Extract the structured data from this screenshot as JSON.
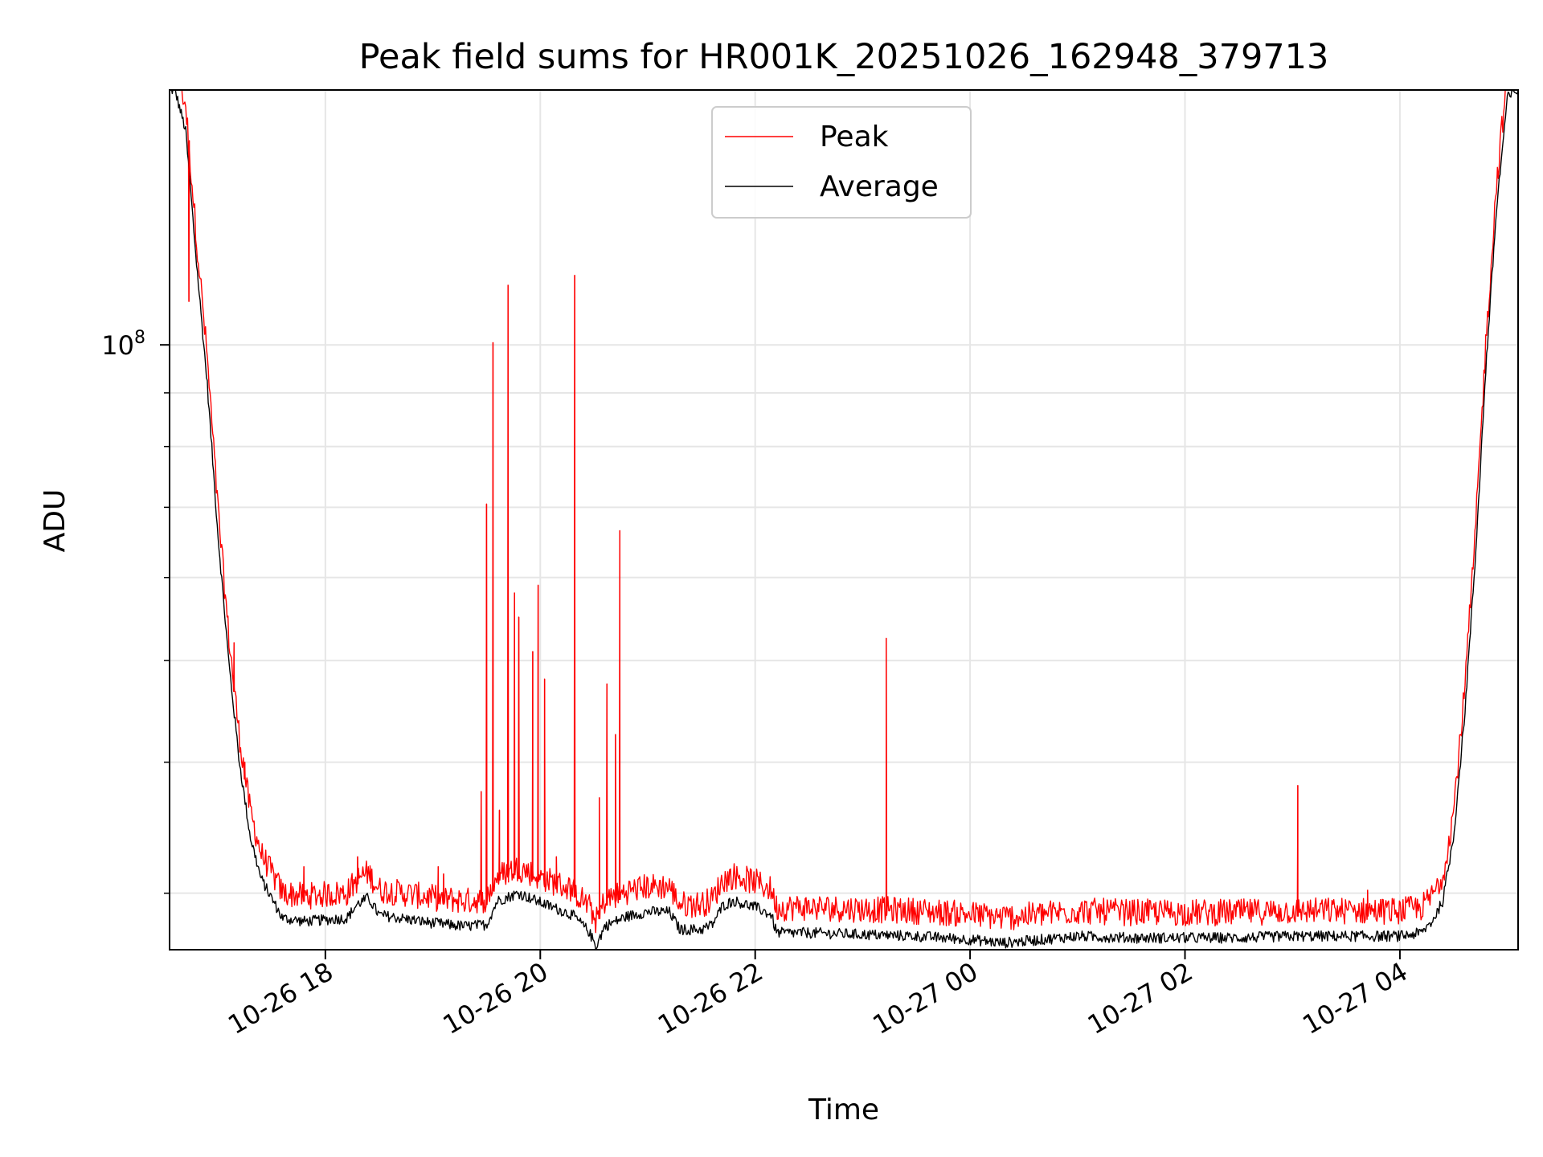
{
  "chart_data": {
    "type": "line",
    "title": "Peak field sums for HR001K_20251026_162948_379713",
    "xlabel": "Time",
    "ylabel": "ADU",
    "y_scale": "log",
    "x_unit": "hours since 2025-10-26 00:00",
    "xlim": [
      16.55,
      29.1
    ],
    "ylim": [
      26500000,
      175000000
    ],
    "grid": true,
    "x_ticks": [
      {
        "value": 18,
        "label": "10-26 18"
      },
      {
        "value": 20,
        "label": "10-26 20"
      },
      {
        "value": 22,
        "label": "10-26 22"
      },
      {
        "value": 24,
        "label": "10-27 00"
      },
      {
        "value": 26,
        "label": "10-27 02"
      },
      {
        "value": 28,
        "label": "10-27 04"
      }
    ],
    "y_major_tick": {
      "value": 100000000,
      "label_base": "10",
      "label_exp": "8"
    },
    "y_minor_ticks": [
      30000000,
      40000000,
      50000000,
      60000000,
      70000000,
      80000000,
      90000000,
      200000000
    ],
    "legend": {
      "placement": "upper-center",
      "entries": [
        {
          "label": "Peak",
          "color": "#ff0000"
        },
        {
          "label": "Average",
          "color": "#000000"
        }
      ]
    },
    "series": [
      {
        "name": "Average",
        "color": "#000000",
        "points": [
          [
            16.6,
            175000000
          ],
          [
            16.7,
            160000000
          ],
          [
            16.8,
            120000000
          ],
          [
            16.9,
            92000000
          ],
          [
            17.0,
            66000000
          ],
          [
            17.1,
            50000000
          ],
          [
            17.2,
            40000000
          ],
          [
            17.3,
            34000000
          ],
          [
            17.4,
            31000000
          ],
          [
            17.6,
            28400000
          ],
          [
            17.8,
            28200000
          ],
          [
            18.0,
            28300000
          ],
          [
            18.2,
            28400000
          ],
          [
            18.3,
            29300000
          ],
          [
            18.4,
            29700000
          ],
          [
            18.5,
            28600000
          ],
          [
            19.0,
            28100000
          ],
          [
            19.3,
            27900000
          ],
          [
            19.5,
            28000000
          ],
          [
            19.6,
            29500000
          ],
          [
            19.8,
            30000000
          ],
          [
            20.0,
            29400000
          ],
          [
            20.3,
            28600000
          ],
          [
            20.45,
            27600000
          ],
          [
            20.52,
            26700000
          ],
          [
            20.6,
            27900000
          ],
          [
            20.8,
            28500000
          ],
          [
            21.0,
            28800000
          ],
          [
            21.2,
            28800000
          ],
          [
            21.3,
            27700000
          ],
          [
            21.5,
            27700000
          ],
          [
            21.6,
            28000000
          ],
          [
            21.7,
            29200000
          ],
          [
            21.8,
            29500000
          ],
          [
            22.0,
            29100000
          ],
          [
            22.15,
            28600000
          ],
          [
            22.2,
            27500000
          ],
          [
            22.5,
            27500000
          ],
          [
            23.0,
            27400000
          ],
          [
            23.5,
            27300000
          ],
          [
            24.0,
            27100000
          ],
          [
            24.3,
            26900000
          ],
          [
            24.5,
            27000000
          ],
          [
            25.0,
            27300000
          ],
          [
            25.5,
            27200000
          ],
          [
            26.0,
            27200000
          ],
          [
            26.5,
            27200000
          ],
          [
            27.0,
            27300000
          ],
          [
            27.5,
            27300000
          ],
          [
            28.0,
            27300000
          ],
          [
            28.2,
            27500000
          ],
          [
            28.3,
            28200000
          ],
          [
            28.4,
            29500000
          ],
          [
            28.5,
            34000000
          ],
          [
            28.6,
            44000000
          ],
          [
            28.7,
            62000000
          ],
          [
            28.8,
            95000000
          ],
          [
            28.9,
            135000000
          ],
          [
            29.0,
            172000000
          ],
          [
            29.1,
            175000000
          ]
        ]
      },
      {
        "name": "Peak",
        "color": "#ff0000",
        "baseline_over_average": 1.045,
        "noise_amplitude": 0.03,
        "spikes": [
          [
            16.73,
            110000000
          ],
          [
            17.15,
            52000000
          ],
          [
            17.25,
            40000000
          ],
          [
            17.8,
            31800000
          ],
          [
            18.3,
            32500000
          ],
          [
            18.42,
            31500000
          ],
          [
            19.05,
            31800000
          ],
          [
            19.1,
            31300000
          ],
          [
            19.45,
            37500000
          ],
          [
            19.5,
            70500000
          ],
          [
            19.56,
            100500000
          ],
          [
            19.62,
            36000000
          ],
          [
            19.7,
            114000000
          ],
          [
            19.76,
            58000000
          ],
          [
            19.8,
            55000000
          ],
          [
            19.93,
            51000000
          ],
          [
            19.98,
            59000000
          ],
          [
            20.04,
            48000000
          ],
          [
            20.15,
            32500000
          ],
          [
            20.32,
            116500000
          ],
          [
            20.55,
            37000000
          ],
          [
            20.62,
            47500000
          ],
          [
            20.7,
            42500000
          ],
          [
            20.74,
            66500000
          ],
          [
            23.22,
            52500000
          ],
          [
            27.05,
            38000000
          ],
          [
            27.7,
            30200000
          ]
        ]
      }
    ]
  }
}
